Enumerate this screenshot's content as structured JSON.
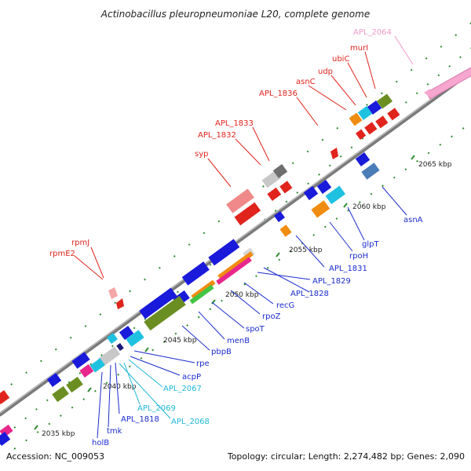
{
  "title": "Actinobacillus pleuropneumoniae L20, complete genome",
  "footer": {
    "accession": "Accession: NC_009053",
    "summary": "Topology: circular; Length: 2,274,482 bp; Genes: 2,090"
  },
  "colors": {
    "red_label": "#e0241c",
    "blue_label": "#1a2ccc",
    "cyan_label": "#1fb8d8",
    "pink_label": "#f29ac8",
    "backbone": "#8c8c8c",
    "tick": "#2e8b2e"
  },
  "scale_labels": [
    {
      "name": "kb-2035",
      "text": "2035 kbp"
    },
    {
      "name": "kb-2040",
      "text": "2040 kbp"
    },
    {
      "name": "kb-2045",
      "text": "2045 kbp"
    },
    {
      "name": "kb-2050",
      "text": "2050 kbp"
    },
    {
      "name": "kb-2055",
      "text": "2055 kbp"
    },
    {
      "name": "kb-2060",
      "text": "2060 kbp"
    },
    {
      "name": "kb-2065",
      "text": "2065 kbp"
    }
  ],
  "gene_labels": {
    "APL_2064": "APL_2064",
    "murI": "murI",
    "ubiC": "ubiC",
    "udp": "udp",
    "asnC": "asnC",
    "APL_1836": "APL_1836",
    "APL_1833": "APL_1833",
    "APL_1832": "APL_1832",
    "syp": "syp",
    "rpmJ": "rpmJ",
    "rpmE2": "rpmE2",
    "asnA": "asnA",
    "glpT": "glpT",
    "rpoH": "rpoH",
    "APL_1831": "APL_1831",
    "APL_1829": "APL_1829",
    "APL_1828": "APL_1828",
    "recG": "recG",
    "rpoZ": "rpoZ",
    "spoT": "spoT",
    "menB": "menB",
    "pbpB": "pbpB",
    "rpe": "rpe",
    "acpP": "acpP",
    "APL_2067": "APL_2067",
    "APL_2069": "APL_2069",
    "APL_1818": "APL_1818",
    "APL_2068": "APL_2068",
    "tmk": "tmk",
    "holB": "holB"
  }
}
